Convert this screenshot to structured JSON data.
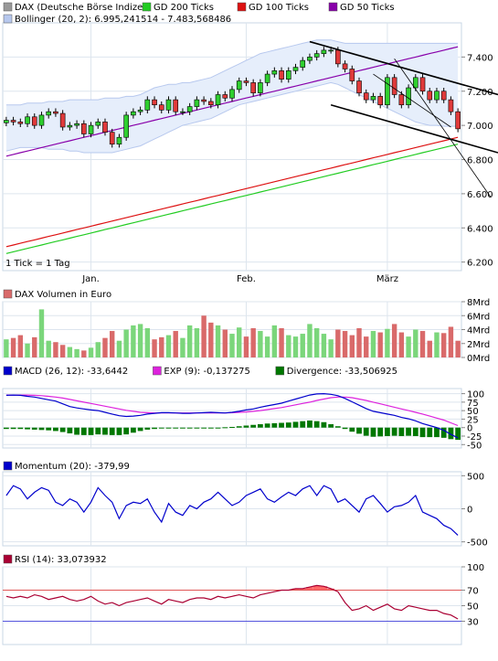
{
  "colors": {
    "bg": "#ffffff",
    "frame": "#c8d7e6",
    "grid": "#dde5ee",
    "up": "#2fcf2f",
    "down": "#e03a3a",
    "bollinger_fill": "#e6eefb",
    "bollinger_line": "#b7c8ee",
    "gd200": "#22cc22",
    "gd100": "#dd1111",
    "gd50": "#8800aa",
    "volume_up": "#7bd67b",
    "volume_down": "#d96a6a",
    "macd": "#0000cc",
    "exp": "#dd22dd",
    "divergence": "#007700",
    "momentum": "#0000cc",
    "rsi": "#aa0033",
    "rsi_over": "#ff6666"
  },
  "chart_data": [
    {
      "type": "candlestick",
      "legend": [
        {
          "name": "DAX (Deutsche Börse Indizes)",
          "color": "#999999"
        },
        {
          "name": "GD 200 Ticks",
          "color": "#22cc22"
        },
        {
          "name": "GD 100 Ticks",
          "color": "#dd1111"
        },
        {
          "name": "GD 50 Ticks",
          "color": "#8800aa"
        },
        {
          "name": "Bollinger (20, 2): 6.995,241514 - 7.483,568486",
          "color": "#b7c8ee"
        }
      ],
      "x_ticks": [
        {
          "i": 12,
          "label": "Jan."
        },
        {
          "i": 34,
          "label": "Feb."
        },
        {
          "i": 54,
          "label": "März"
        }
      ],
      "yticks": [
        "6.200",
        "6.400",
        "6.600",
        "6.800",
        "7.000",
        "7.200",
        "7.400"
      ],
      "ylim": [
        6150,
        7600
      ],
      "note": "1 Tick = 1 Tag",
      "close": [
        7030,
        7020,
        7010,
        7050,
        7000,
        7060,
        7080,
        7070,
        6990,
        7000,
        7010,
        6950,
        7000,
        7020,
        6960,
        6890,
        6930,
        7060,
        7080,
        7090,
        7150,
        7120,
        7090,
        7150,
        7080,
        7080,
        7110,
        7150,
        7140,
        7120,
        7180,
        7160,
        7210,
        7260,
        7250,
        7190,
        7250,
        7300,
        7320,
        7270,
        7320,
        7340,
        7380,
        7400,
        7420,
        7440,
        7440,
        7360,
        7330,
        7260,
        7190,
        7150,
        7170,
        7120,
        7280,
        7180,
        7120,
        7220,
        7280,
        7200,
        7150,
        7200,
        7150,
        7080,
        6980
      ],
      "gd200": [
        6250,
        6260,
        6270,
        6280,
        6290,
        6300,
        6310,
        6320,
        6330,
        6340,
        6350,
        6360,
        6370,
        6380,
        6390,
        6400,
        6410,
        6420,
        6430,
        6440,
        6450,
        6460,
        6470,
        6480,
        6490,
        6500,
        6510,
        6520,
        6530,
        6540,
        6550,
        6560,
        6570,
        6580,
        6590,
        6600,
        6610,
        6620,
        6630,
        6640,
        6650,
        6660,
        6670,
        6680,
        6690,
        6700,
        6710,
        6720,
        6730,
        6740,
        6750,
        6760,
        6770,
        6780,
        6790,
        6800,
        6810,
        6820,
        6830,
        6840,
        6850,
        6860,
        6870,
        6880,
        6890
      ],
      "gd100": [
        6290,
        6300,
        6310,
        6320,
        6330,
        6340,
        6350,
        6360,
        6370,
        6380,
        6390,
        6400,
        6410,
        6420,
        6430,
        6440,
        6450,
        6460,
        6470,
        6480,
        6490,
        6500,
        6510,
        6520,
        6530,
        6540,
        6550,
        6560,
        6570,
        6580,
        6590,
        6600,
        6610,
        6620,
        6630,
        6640,
        6650,
        6660,
        6670,
        6680,
        6690,
        6700,
        6710,
        6720,
        6730,
        6740,
        6750,
        6760,
        6770,
        6780,
        6790,
        6800,
        6810,
        6820,
        6830,
        6840,
        6850,
        6860,
        6870,
        6880,
        6890,
        6900,
        6910,
        6920,
        6930
      ],
      "gd50": [
        6820,
        6830,
        6840,
        6850,
        6860,
        6870,
        6880,
        6890,
        6900,
        6910,
        6920,
        6930,
        6940,
        6950,
        6960,
        6970,
        6980,
        6990,
        7000,
        7010,
        7020,
        7030,
        7040,
        7050,
        7060,
        7070,
        7080,
        7090,
        7100,
        7110,
        7120,
        7130,
        7140,
        7150,
        7160,
        7170,
        7180,
        7190,
        7200,
        7210,
        7220,
        7230,
        7240,
        7250,
        7260,
        7270,
        7280,
        7290,
        7300,
        7310,
        7320,
        7330,
        7340,
        7350,
        7360,
        7370,
        7380,
        7390,
        7400,
        7410,
        7420,
        7430,
        7440,
        7450,
        7460
      ],
      "boll_upper": [
        7120,
        7120,
        7120,
        7130,
        7130,
        7130,
        7140,
        7140,
        7140,
        7150,
        7150,
        7150,
        7150,
        7150,
        7160,
        7160,
        7160,
        7170,
        7170,
        7180,
        7200,
        7220,
        7230,
        7240,
        7240,
        7250,
        7250,
        7260,
        7270,
        7280,
        7300,
        7320,
        7340,
        7360,
        7380,
        7400,
        7420,
        7430,
        7440,
        7450,
        7460,
        7470,
        7480,
        7490,
        7500,
        7500,
        7500,
        7490,
        7480,
        7480,
        7480,
        7480,
        7480,
        7480,
        7480,
        7480,
        7480,
        7480,
        7480,
        7480,
        7480,
        7480,
        7480,
        7480,
        7480
      ],
      "boll_lower": [
        6850,
        6860,
        6870,
        6870,
        6870,
        6870,
        6860,
        6860,
        6860,
        6850,
        6850,
        6840,
        6840,
        6840,
        6840,
        6840,
        6850,
        6860,
        6870,
        6880,
        6900,
        6920,
        6940,
        6960,
        6980,
        7000,
        7010,
        7020,
        7030,
        7040,
        7060,
        7080,
        7100,
        7120,
        7130,
        7140,
        7150,
        7160,
        7170,
        7180,
        7190,
        7200,
        7210,
        7220,
        7230,
        7240,
        7250,
        7240,
        7220,
        7200,
        7180,
        7160,
        7140,
        7120,
        7100,
        7080,
        7060,
        7040,
        7020,
        7010,
        7000,
        7000,
        6995,
        6995,
        6995
      ]
    },
    {
      "type": "bar",
      "legend": [
        {
          "name": "DAX Volumen in Euro",
          "color": "#d96a6a"
        }
      ],
      "yticks": [
        "0Mrd",
        "2Mrd",
        "4Mrd",
        "6Mrd",
        "8Mrd"
      ],
      "ylim": [
        0,
        8
      ],
      "values": [
        2.6,
        2.8,
        3.2,
        2.0,
        2.9,
        6.9,
        2.4,
        2.2,
        1.8,
        1.5,
        1.2,
        1.0,
        1.4,
        2.2,
        2.8,
        3.8,
        2.4,
        4.0,
        4.6,
        4.8,
        4.2,
        2.6,
        2.9,
        3.2,
        3.8,
        2.8,
        4.6,
        4.2,
        6.0,
        5.0,
        4.6,
        4.0,
        3.4,
        4.3,
        3.0,
        4.2,
        3.8,
        3.0,
        4.6,
        4.2,
        3.2,
        3.0,
        3.4,
        4.8,
        4.2,
        3.4,
        2.6,
        4.0,
        3.8,
        3.2,
        4.2,
        3.0,
        3.8,
        3.6,
        4.1,
        4.8,
        3.6,
        3.0,
        4.0,
        3.8,
        2.4,
        3.6,
        3.5,
        4.4,
        2.4
      ]
    },
    {
      "type": "line",
      "legend": [
        {
          "name": "MACD (26, 12): -33,6442",
          "color": "#0000cc"
        },
        {
          "name": "EXP (9): -0,137275",
          "color": "#dd22dd"
        },
        {
          "name": "Divergence: -33,506925",
          "color": "#007700"
        }
      ],
      "yticks": [
        "-50",
        "-25",
        "0",
        "25",
        "50",
        "75",
        "100"
      ],
      "ylim": [
        -60,
        115
      ],
      "macd": [
        95,
        96,
        95,
        92,
        90,
        86,
        82,
        78,
        70,
        62,
        58,
        55,
        52,
        50,
        45,
        40,
        35,
        33,
        34,
        36,
        40,
        42,
        44,
        44,
        43,
        42,
        42,
        43,
        44,
        45,
        44,
        43,
        45,
        48,
        52,
        55,
        60,
        64,
        68,
        72,
        78,
        84,
        90,
        96,
        99,
        100,
        98,
        94,
        86,
        76,
        66,
        56,
        48,
        44,
        40,
        36,
        30,
        26,
        20,
        12,
        6,
        0,
        -8,
        -20,
        -30
      ],
      "exp": [
        96,
        96,
        96,
        96,
        95,
        94,
        92,
        90,
        87,
        83,
        79,
        75,
        71,
        67,
        63,
        59,
        55,
        51,
        48,
        45,
        44,
        43,
        43,
        43,
        43,
        43,
        43,
        43,
        43,
        43,
        43,
        43,
        44,
        45,
        46,
        48,
        50,
        53,
        56,
        59,
        63,
        67,
        71,
        75,
        80,
        84,
        88,
        90,
        90,
        88,
        84,
        80,
        75,
        70,
        65,
        60,
        55,
        50,
        45,
        40,
        34,
        28,
        22,
        14,
        6
      ],
      "divergence": [
        -4,
        -4,
        -4,
        -5,
        -6,
        -7,
        -8,
        -10,
        -13,
        -17,
        -21,
        -22,
        -22,
        -20,
        -21,
        -22,
        -22,
        -20,
        -15,
        -10,
        -6,
        -4,
        -2,
        -1,
        -2,
        -2,
        -1,
        -1,
        0,
        0,
        0,
        1,
        2,
        4,
        6,
        8,
        10,
        12,
        13,
        14,
        15,
        17,
        19,
        21,
        19,
        16,
        10,
        4,
        -4,
        -12,
        -18,
        -24,
        -27,
        -26,
        -25,
        -24,
        -25,
        -24,
        -25,
        -28,
        -28,
        -28,
        -30,
        -34,
        -36
      ]
    },
    {
      "type": "line",
      "legend": [
        {
          "name": "Momentum (20): -379,99",
          "color": "#0000cc"
        }
      ],
      "yticks": [
        "-500",
        "0",
        "500"
      ],
      "ylim": [
        -560,
        560
      ],
      "values": [
        200,
        350,
        300,
        150,
        250,
        320,
        280,
        100,
        50,
        150,
        100,
        -50,
        100,
        320,
        200,
        100,
        -150,
        50,
        100,
        80,
        150,
        -50,
        -200,
        80,
        -50,
        -100,
        50,
        0,
        100,
        150,
        250,
        150,
        50,
        100,
        200,
        250,
        300,
        150,
        100,
        180,
        250,
        200,
        300,
        350,
        200,
        350,
        300,
        100,
        150,
        50,
        -50,
        150,
        200,
        80,
        -50,
        30,
        50,
        100,
        200,
        -50,
        -100,
        -150,
        -250,
        -300,
        -400
      ]
    },
    {
      "type": "line",
      "legend": [
        {
          "name": "RSI (14): 33,073932",
          "color": "#aa0033"
        }
      ],
      "yticks": [
        "30",
        "50",
        "70",
        "100"
      ],
      "ylim": [
        0,
        100
      ],
      "overbought": 70,
      "oversold": 30,
      "values": [
        62,
        60,
        62,
        60,
        64,
        62,
        58,
        60,
        62,
        58,
        56,
        58,
        62,
        56,
        52,
        54,
        50,
        54,
        56,
        58,
        60,
        56,
        52,
        58,
        56,
        54,
        58,
        60,
        60,
        58,
        62,
        60,
        62,
        64,
        62,
        60,
        64,
        66,
        68,
        70,
        70,
        72,
        72,
        74,
        76,
        75,
        72,
        68,
        54,
        44,
        46,
        50,
        44,
        48,
        52,
        46,
        44,
        50,
        48,
        46,
        44,
        44,
        40,
        38,
        33
      ]
    }
  ]
}
